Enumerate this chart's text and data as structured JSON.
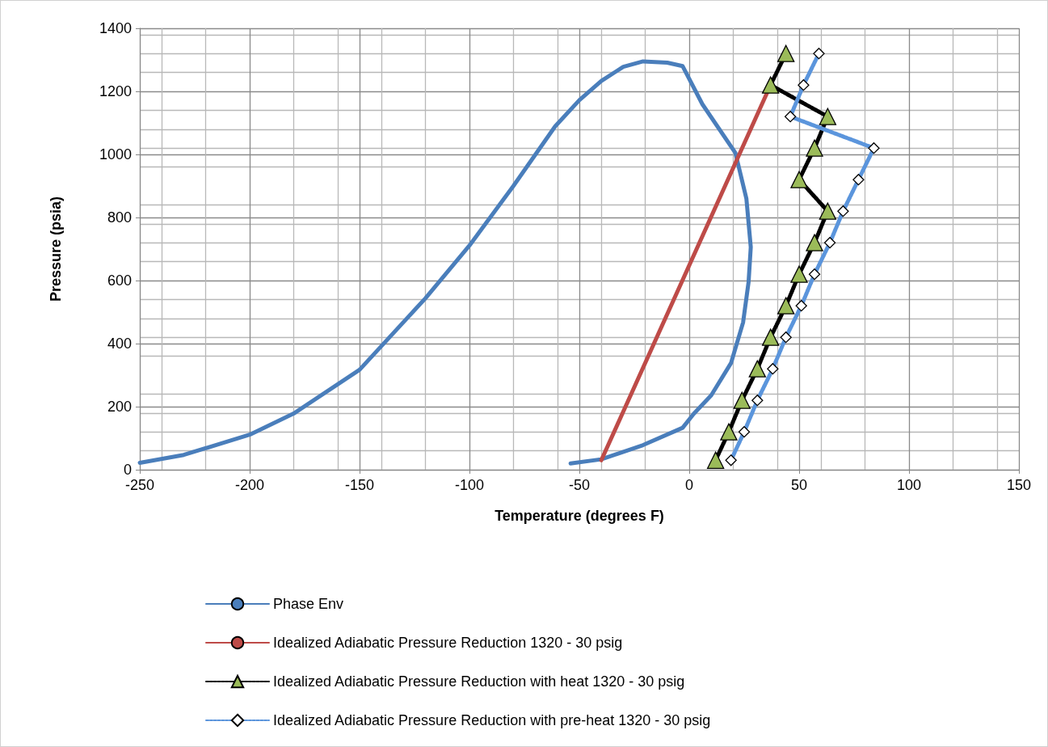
{
  "chart_data": {
    "type": "line",
    "xlabel": "Temperature (degrees F)",
    "ylabel": "Pressure (psia)",
    "xlim": [
      -250,
      150
    ],
    "xticks": [
      -250,
      -200,
      -150,
      -100,
      -50,
      0,
      50,
      100,
      150
    ],
    "ylim": [
      0,
      1400
    ],
    "yticks": [
      0,
      200,
      400,
      600,
      800,
      1000,
      1200,
      1400
    ],
    "grid": true,
    "legend": "bottom",
    "series": [
      {
        "name": "Phase Env",
        "color": "#4a7ebb",
        "marker": "none",
        "line_style": "solid",
        "x": [
          -250,
          -230,
          -200,
          -180,
          -150,
          -120,
          -100,
          -80,
          -61,
          -50,
          -40,
          -30,
          -21,
          -10,
          -3,
          6,
          21,
          26,
          28,
          27,
          24.5,
          19,
          10,
          2,
          -3,
          -21,
          -40,
          -54
        ],
        "values": [
          22,
          47,
          111,
          178,
          317,
          544,
          711,
          900,
          1089,
          1172,
          1233,
          1278,
          1295,
          1291,
          1280,
          1159,
          1005,
          860,
          706,
          595,
          467,
          338,
          236,
          177,
          133,
          78,
          33,
          20
        ]
      },
      {
        "name": "Idealized Adiabatic Pressure Reduction 1320 - 30 psig",
        "color": "#be4b48",
        "marker": "none",
        "line_style": "solid",
        "x": [
          -40,
          37
        ],
        "values": [
          30,
          1220
        ]
      },
      {
        "name": "Idealized Adiabatic Pressure Reduction with heat 1320 - 30 psig",
        "color": "#000000",
        "marker": "triangle",
        "line_style": "dashed",
        "colors": [
          "#9bbb59",
          "#9bbb59",
          "#9bbb59",
          "#9bbb59",
          "#9bbb59",
          "#9bbb59",
          "#9bbb59",
          "#9bbb59",
          "#9bbb59",
          "#9bbb59",
          "#9bbb59",
          "#9bbb59",
          "#9bbb59",
          "#9bbb59"
        ],
        "x": [
          44,
          37,
          63,
          57,
          50,
          63,
          57,
          50,
          44,
          37,
          31,
          24,
          18,
          12
        ],
        "values": [
          1320,
          1220,
          1120,
          1020,
          920,
          820,
          720,
          620,
          520,
          420,
          320,
          220,
          120,
          30
        ]
      },
      {
        "name": "Idealized Adiabatic Pressure Reduction with pre-heat 1320 - 30 psig",
        "color": "#5b95dc",
        "marker": "diamond",
        "line_style": "dashed",
        "colors": [
          "#ffffff",
          "#ffffff",
          "#ffffff",
          "#ffffff",
          "#ffffff",
          "#ffffff",
          "#ffffff",
          "#ffffff",
          "#ffffff",
          "#ffffff",
          "#ffffff",
          "#ffffff",
          "#ffffff",
          "#ffffff"
        ],
        "x": [
          59,
          52,
          46,
          84,
          77,
          70,
          64,
          57,
          51,
          44,
          38,
          31,
          25,
          19
        ],
        "values": [
          1320,
          1220,
          1120,
          1020,
          920,
          820,
          720,
          620,
          520,
          420,
          320,
          220,
          120,
          30
        ]
      }
    ]
  }
}
